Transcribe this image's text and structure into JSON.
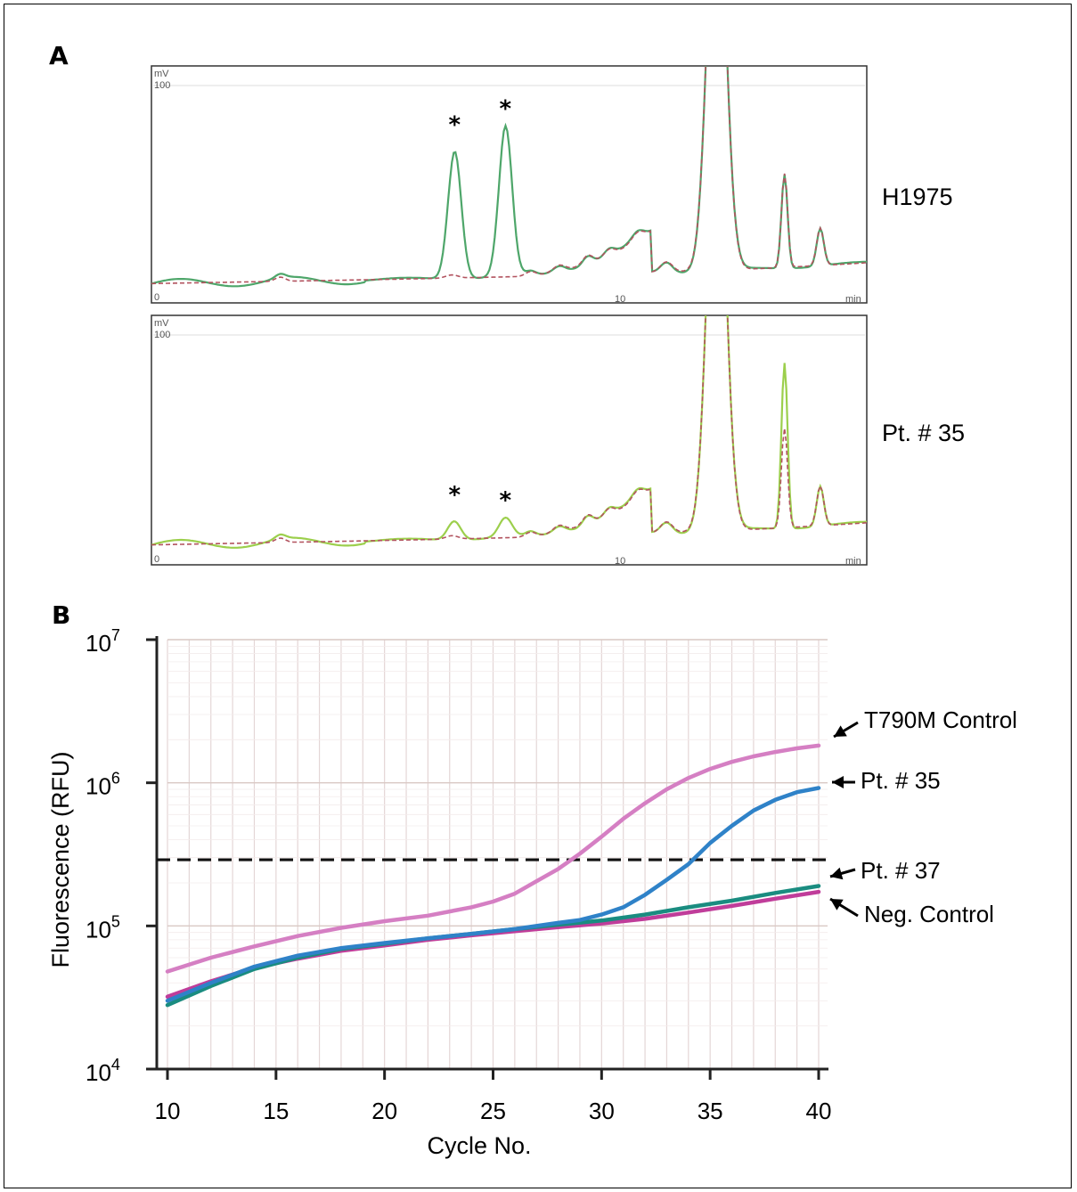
{
  "panel_a": {
    "letter": "A",
    "traces": [
      {
        "sample": "H1975",
        "y_unit": "mV",
        "y_max_label": "100",
        "y_min_label": "0",
        "x_mid_label": "10",
        "x_unit": "min",
        "star": "*",
        "colors": {
          "sample": "#4ea66a",
          "reference": "#b2535f"
        },
        "peak_scale": 1.0
      },
      {
        "sample": "Pt. # 35",
        "y_unit": "mV",
        "y_max_label": "100",
        "y_min_label": "0",
        "x_mid_label": "10",
        "x_unit": "min",
        "star": "*",
        "colors": {
          "sample": "#9ccf4c",
          "reference": "#b2535f"
        },
        "peak_scale": 0.12
      }
    ]
  },
  "panel_b": {
    "letter": "B"
  },
  "chart_data": {
    "type": "line",
    "xlabel": "Cycle No.",
    "ylabel": "Fluorescence (RFU)",
    "xlim": [
      10,
      40
    ],
    "ylim": [
      10000,
      10000000
    ],
    "y_scale": "log",
    "x_ticks": [
      10,
      15,
      20,
      25,
      30,
      35,
      40
    ],
    "y_ticks": [
      {
        "value": 10000,
        "base": "10",
        "exp": "4"
      },
      {
        "value": 100000,
        "base": "10",
        "exp": "5"
      },
      {
        "value": 1000000,
        "base": "10",
        "exp": "6"
      },
      {
        "value": 10000000,
        "base": "10",
        "exp": "7"
      }
    ],
    "threshold": 290000,
    "grid": true,
    "series": [
      {
        "name": "T790M Control",
        "color": "#d57fc3",
        "x": [
          10,
          12,
          14,
          16,
          18,
          20,
          22,
          24,
          25,
          26,
          27,
          28,
          29,
          30,
          31,
          32,
          33,
          34,
          35,
          36,
          37,
          38,
          39,
          40
        ],
        "y": [
          48000,
          60000,
          72000,
          85000,
          97000,
          108000,
          118000,
          135000,
          148000,
          168000,
          205000,
          250000,
          320000,
          420000,
          560000,
          720000,
          900000,
          1080000,
          1250000,
          1400000,
          1530000,
          1640000,
          1740000,
          1820000
        ]
      },
      {
        "name": "Pt. # 35",
        "color": "#2f82c8",
        "x": [
          10,
          12,
          14,
          16,
          18,
          20,
          22,
          24,
          26,
          28,
          29,
          30,
          31,
          32,
          33,
          34,
          35,
          36,
          37,
          38,
          39,
          40
        ],
        "y": [
          30000,
          40000,
          52000,
          62000,
          70000,
          76000,
          82000,
          88000,
          95000,
          105000,
          110000,
          120000,
          135000,
          165000,
          210000,
          270000,
          380000,
          500000,
          640000,
          760000,
          860000,
          920000
        ]
      },
      {
        "name": "Pt. # 37",
        "color": "#1a8c80",
        "x": [
          10,
          12,
          14,
          16,
          18,
          20,
          22,
          24,
          26,
          28,
          30,
          32,
          34,
          36,
          38,
          40
        ],
        "y": [
          28000,
          38000,
          50000,
          60000,
          69000,
          75000,
          82000,
          88000,
          95000,
          102000,
          109000,
          120000,
          135000,
          150000,
          170000,
          190000
        ]
      },
      {
        "name": "Neg. Control",
        "color": "#c03d9a",
        "x": [
          10,
          12,
          14,
          16,
          18,
          20,
          22,
          24,
          26,
          28,
          30,
          32,
          34,
          36,
          38,
          40
        ],
        "y": [
          32000,
          41000,
          51000,
          59000,
          67000,
          73000,
          80000,
          86000,
          92000,
          98000,
          104000,
          112000,
          124000,
          138000,
          155000,
          173000
        ]
      }
    ],
    "annotations": [
      "T790M Control",
      "Pt. # 35",
      "Pt. # 37",
      "Neg. Control"
    ]
  }
}
